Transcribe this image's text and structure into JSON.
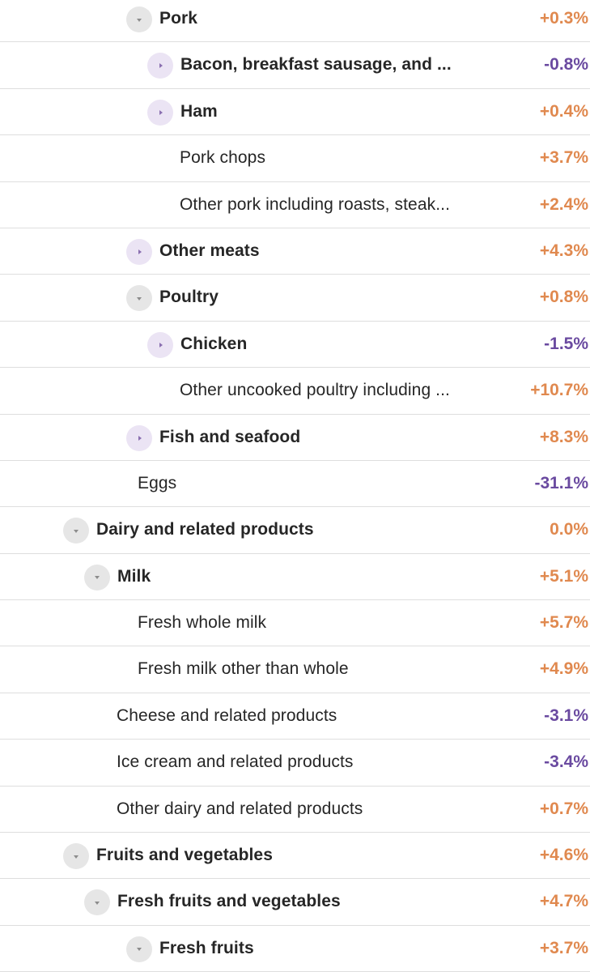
{
  "colors": {
    "positive": "#e0894f",
    "negative": "#6a4aa0",
    "divider": "#dedede",
    "toggle_expanded_bg": "#e6e6e6",
    "toggle_collapsed_bg": "#ebe4f4"
  },
  "rows": [
    {
      "label": "Pork",
      "value": "+0.3%",
      "level": 3,
      "toggle": "expanded",
      "bold": true
    },
    {
      "label": "Bacon, breakfast sausage, and ...",
      "value": "-0.8%",
      "level": 4,
      "toggle": "collapsed",
      "bold": true
    },
    {
      "label": "Ham",
      "value": "+0.4%",
      "level": 4,
      "toggle": "collapsed",
      "bold": true
    },
    {
      "label": "Pork chops",
      "value": "+3.7%",
      "level": 4,
      "toggle": "none",
      "bold": false
    },
    {
      "label": "Other pork including roasts, steak...",
      "value": "+2.4%",
      "level": 4,
      "toggle": "none",
      "bold": false
    },
    {
      "label": "Other meats",
      "value": "+4.3%",
      "level": 3,
      "toggle": "collapsed",
      "bold": true
    },
    {
      "label": "Poultry",
      "value": "+0.8%",
      "level": 3,
      "toggle": "expanded",
      "bold": true
    },
    {
      "label": "Chicken",
      "value": "-1.5%",
      "level": 4,
      "toggle": "collapsed",
      "bold": true
    },
    {
      "label": "Other uncooked poultry including ...",
      "value": "+10.7%",
      "level": 4,
      "toggle": "none",
      "bold": false
    },
    {
      "label": "Fish and seafood",
      "value": "+8.3%",
      "level": 3,
      "toggle": "collapsed",
      "bold": true
    },
    {
      "label": "Eggs",
      "value": "-31.1%",
      "level": 3,
      "toggle": "none",
      "bold": false
    },
    {
      "label": "Dairy and related products",
      "value": "0.0%",
      "level": 1,
      "toggle": "expanded",
      "bold": true
    },
    {
      "label": "Milk",
      "value": "+5.1%",
      "level": 2,
      "toggle": "expanded",
      "bold": true
    },
    {
      "label": "Fresh whole milk",
      "value": "+5.7%",
      "level": 3,
      "toggle": "none",
      "bold": false
    },
    {
      "label": "Fresh milk other than whole",
      "value": "+4.9%",
      "level": 3,
      "toggle": "none",
      "bold": false
    },
    {
      "label": "Cheese and related products",
      "value": "-3.1%",
      "level": 2,
      "toggle": "none",
      "bold": false
    },
    {
      "label": "Ice cream and related products",
      "value": "-3.4%",
      "level": 2,
      "toggle": "none",
      "bold": false
    },
    {
      "label": "Other dairy and related products",
      "value": "+0.7%",
      "level": 2,
      "toggle": "none",
      "bold": false
    },
    {
      "label": "Fruits and vegetables",
      "value": "+4.6%",
      "level": 1,
      "toggle": "expanded",
      "bold": true
    },
    {
      "label": "Fresh fruits and vegetables",
      "value": "+4.7%",
      "level": 2,
      "toggle": "expanded",
      "bold": true
    },
    {
      "label": "Fresh fruits",
      "value": "+3.7%",
      "level": 3,
      "toggle": "expanded",
      "bold": true
    }
  ]
}
